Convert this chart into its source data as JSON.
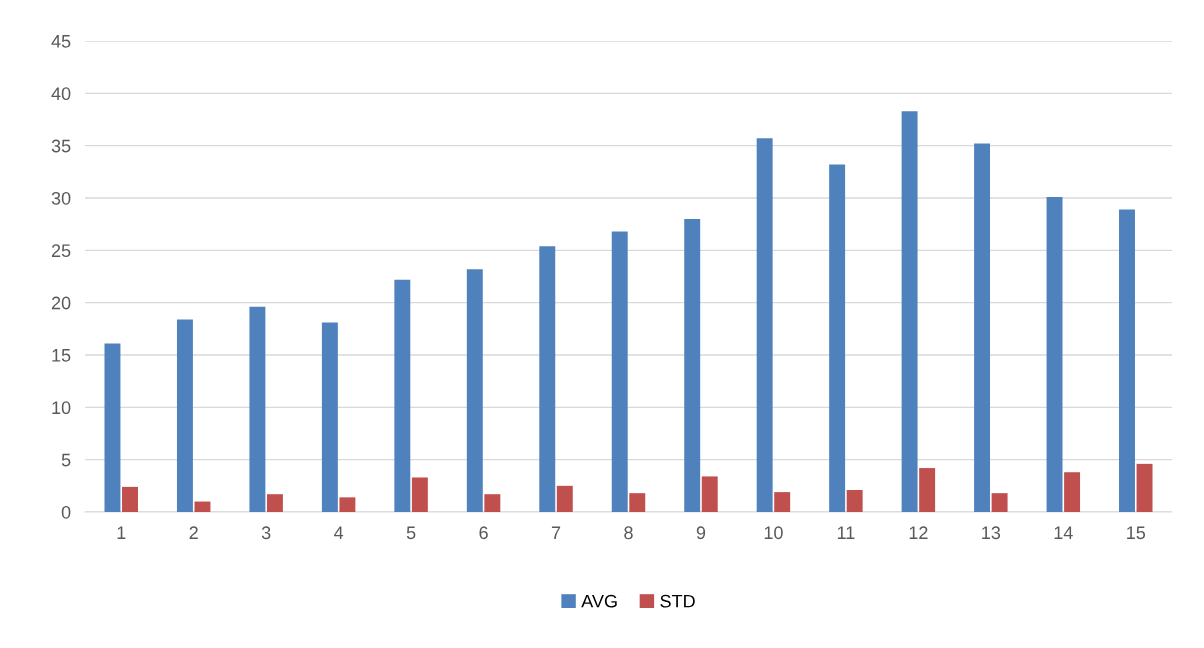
{
  "chart_data": {
    "type": "bar",
    "categories": [
      "1",
      "2",
      "3",
      "4",
      "5",
      "6",
      "7",
      "8",
      "9",
      "10",
      "11",
      "12",
      "13",
      "14",
      "15"
    ],
    "series": [
      {
        "name": "AVG",
        "color": "#4f81bd",
        "values": [
          16.1,
          18.4,
          19.6,
          18.1,
          22.2,
          23.2,
          25.4,
          26.8,
          28.0,
          35.7,
          33.2,
          38.3,
          35.2,
          30.1,
          28.9
        ]
      },
      {
        "name": "STD",
        "color": "#c0504d",
        "values": [
          2.4,
          1.0,
          1.7,
          1.4,
          3.3,
          1.7,
          2.5,
          1.8,
          3.4,
          1.9,
          2.1,
          4.2,
          1.8,
          3.8,
          4.6
        ]
      }
    ],
    "ylim": [
      0,
      45
    ],
    "yticks": [
      0,
      5,
      10,
      15,
      20,
      25,
      30,
      35,
      40,
      45
    ],
    "grid": "y",
    "legend": "bottom"
  }
}
